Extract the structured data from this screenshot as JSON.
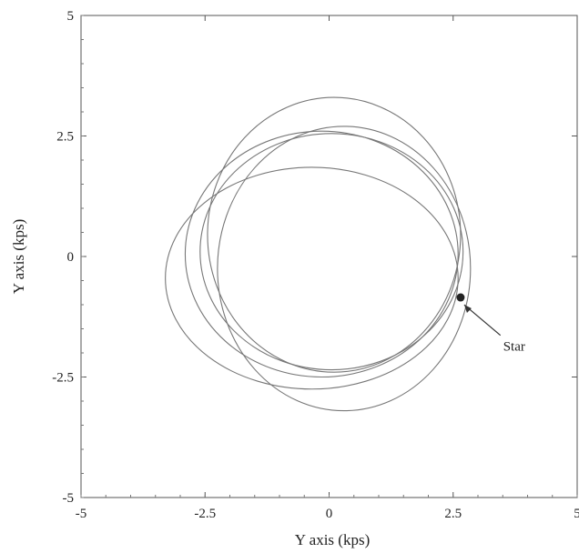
{
  "chart_data": {
    "type": "line",
    "title": "",
    "xlabel": "Y axis (kps)",
    "ylabel": "Y axis (kps)",
    "xlim": [
      -5,
      5
    ],
    "ylim": [
      -5,
      5
    ],
    "x_ticks": [
      "-5",
      "-2.5",
      "0",
      "2.5",
      "5"
    ],
    "y_ticks": [
      "5",
      "2.5",
      "0",
      "-2.5",
      "-5"
    ],
    "grid": false,
    "series": [
      {
        "name": "",
        "color": "#777777",
        "description_free_loops": [
          {
            "cx": 0.1,
            "cy": 0.45,
            "rx": 2.55,
            "ry": 2.85,
            "rot": 0
          },
          {
            "cx": -0.15,
            "cy": 0.05,
            "rx": 2.75,
            "ry": 2.55,
            "rot": 0
          },
          {
            "cx": -0.35,
            "cy": -0.45,
            "rx": 2.95,
            "ry": 2.3,
            "rot": 0
          },
          {
            "cx": 0.3,
            "cy": -0.25,
            "rx": 2.55,
            "ry": 2.95,
            "rot": 0
          },
          {
            "cx": 0.05,
            "cy": 0.1,
            "rx": 2.65,
            "ry": 2.45,
            "rot": 0
          }
        ]
      }
    ],
    "point": {
      "x": 2.65,
      "y": -0.85
    },
    "annotation": {
      "text": "Star",
      "x": 3.6,
      "y": -1.9
    }
  }
}
